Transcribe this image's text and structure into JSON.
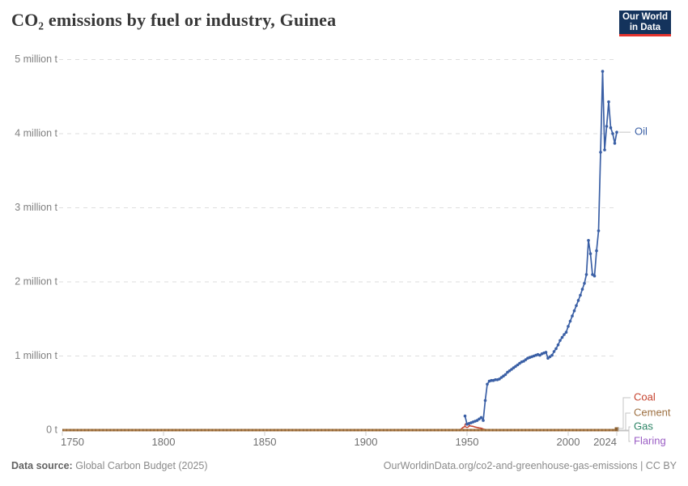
{
  "title": "CO₂ emissions by fuel or industry, Guinea",
  "logo": {
    "line1": "Our World",
    "line2": "in Data"
  },
  "footer": {
    "source_label": "Data source:",
    "source_value": "Global Carbon Budget (2025)",
    "right": "OurWorldinData.org/co2-and-greenhouse-gas-emissions | CC BY"
  },
  "chart_data": {
    "type": "line",
    "title": "CO₂ emissions by fuel or industry, Guinea",
    "unit": "million t",
    "xlim": [
      1750,
      2024
    ],
    "ylim": [
      0,
      5
    ],
    "grid": "horizontal-dashed",
    "legend_position": "right",
    "x_ticks": [
      1750,
      1800,
      1850,
      1900,
      1950,
      2000,
      2024
    ],
    "y_ticks": [
      {
        "value": 0,
        "label": "0 t"
      },
      {
        "value": 1,
        "label": "1 million t"
      },
      {
        "value": 2,
        "label": "2 million t"
      },
      {
        "value": 3,
        "label": "3 million t"
      },
      {
        "value": 4,
        "label": "4 million t"
      },
      {
        "value": 5,
        "label": "5 million t"
      }
    ],
    "series": [
      {
        "name": "Oil",
        "color": "#3a5fa5",
        "points": [
          [
            1949,
            0.19
          ],
          [
            1950,
            0.08
          ],
          [
            1951,
            0.09
          ],
          [
            1952,
            0.1
          ],
          [
            1953,
            0.11
          ],
          [
            1954,
            0.12
          ],
          [
            1955,
            0.13
          ],
          [
            1956,
            0.15
          ],
          [
            1957,
            0.17
          ],
          [
            1958,
            0.13
          ],
          [
            1959,
            0.4
          ],
          [
            1960,
            0.62
          ],
          [
            1961,
            0.66
          ],
          [
            1962,
            0.67
          ],
          [
            1963,
            0.67
          ],
          [
            1964,
            0.68
          ],
          [
            1965,
            0.68
          ],
          [
            1966,
            0.69
          ],
          [
            1967,
            0.71
          ],
          [
            1968,
            0.73
          ],
          [
            1969,
            0.75
          ],
          [
            1970,
            0.78
          ],
          [
            1971,
            0.8
          ],
          [
            1972,
            0.82
          ],
          [
            1973,
            0.84
          ],
          [
            1974,
            0.86
          ],
          [
            1975,
            0.88
          ],
          [
            1976,
            0.9
          ],
          [
            1977,
            0.92
          ],
          [
            1978,
            0.93
          ],
          [
            1979,
            0.95
          ],
          [
            1980,
            0.97
          ],
          [
            1981,
            0.98
          ],
          [
            1982,
            0.99
          ],
          [
            1983,
            1.0
          ],
          [
            1984,
            1.01
          ],
          [
            1985,
            1.02
          ],
          [
            1986,
            1.01
          ],
          [
            1987,
            1.03
          ],
          [
            1988,
            1.04
          ],
          [
            1989,
            1.05
          ],
          [
            1990,
            0.97
          ],
          [
            1991,
            0.99
          ],
          [
            1992,
            1.01
          ],
          [
            1993,
            1.06
          ],
          [
            1994,
            1.1
          ],
          [
            1995,
            1.15
          ],
          [
            1996,
            1.21
          ],
          [
            1997,
            1.25
          ],
          [
            1998,
            1.29
          ],
          [
            1999,
            1.32
          ],
          [
            2000,
            1.4
          ],
          [
            2001,
            1.47
          ],
          [
            2002,
            1.54
          ],
          [
            2003,
            1.61
          ],
          [
            2004,
            1.68
          ],
          [
            2005,
            1.75
          ],
          [
            2006,
            1.82
          ],
          [
            2007,
            1.9
          ],
          [
            2008,
            1.98
          ],
          [
            2009,
            2.1
          ],
          [
            2010,
            2.56
          ],
          [
            2011,
            2.38
          ],
          [
            2012,
            2.1
          ],
          [
            2013,
            2.08
          ],
          [
            2014,
            2.42
          ],
          [
            2015,
            2.69
          ],
          [
            2016,
            3.75
          ],
          [
            2017,
            4.84
          ],
          [
            2018,
            3.78
          ],
          [
            2019,
            4.1
          ],
          [
            2020,
            4.43
          ],
          [
            2021,
            4.08
          ],
          [
            2022,
            4.0
          ],
          [
            2023,
            3.87
          ],
          [
            2024,
            4.02
          ]
        ]
      },
      {
        "name": "Coal",
        "color": "#c6432f",
        "points": [
          [
            1947,
            0.012
          ],
          [
            1948,
            0.035
          ],
          [
            1949,
            0.05
          ],
          [
            1950,
            0.065
          ],
          [
            1951,
            0.06
          ],
          [
            1952,
            0.055
          ],
          [
            1953,
            0.05
          ],
          [
            1954,
            0.042
          ],
          [
            1955,
            0.035
          ],
          [
            1956,
            0.03
          ],
          [
            1957,
            0.025
          ],
          [
            1958,
            0.015
          ],
          [
            1959,
            0.008
          ],
          [
            1960,
            0.004
          ],
          [
            1965,
            0.003
          ],
          [
            1980,
            0.003
          ],
          [
            2000,
            0.003
          ],
          [
            2024,
            0.003
          ]
        ]
      },
      {
        "name": "Cement",
        "color": "#9e7143",
        "points": [
          [
            1750,
            0
          ],
          [
            1800,
            0
          ],
          [
            1850,
            0
          ],
          [
            1900,
            0
          ],
          [
            1950,
            0
          ],
          [
            2000,
            0
          ],
          [
            2024,
            0
          ]
        ]
      },
      {
        "name": "Gas",
        "color": "#2c8465",
        "points": [
          [
            1950,
            0
          ],
          [
            2024,
            0
          ]
        ]
      },
      {
        "name": "Flaring",
        "color": "#9a5dc4",
        "points": [
          [
            1950,
            0
          ],
          [
            2024,
            0
          ]
        ]
      }
    ]
  }
}
